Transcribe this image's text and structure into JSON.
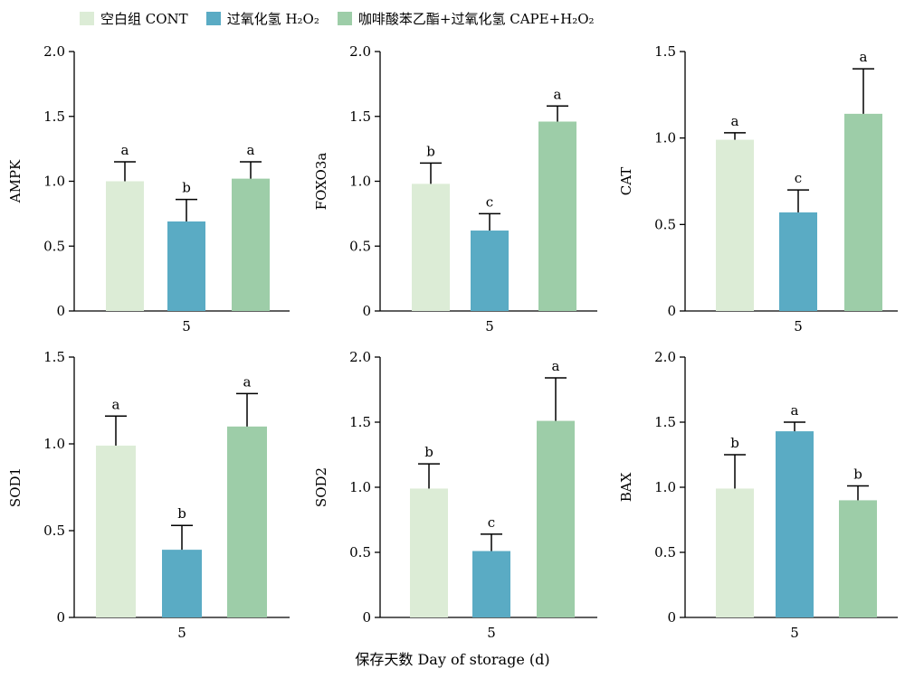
{
  "legend": [
    {
      "label": "空白组 CONT",
      "color": "#dcecd6"
    },
    {
      "label": "过氧化氢 H₂O₂",
      "color": "#5aabc4"
    },
    {
      "label": "咖啡酸苯乙酯+过氧化氢 CAPE+H₂O₂",
      "color": "#9dcda8"
    }
  ],
  "x_title": "保存天数 Day of storage (d)",
  "chart_data": [
    {
      "type": "bar",
      "ylabel": "AMPK",
      "categories": [
        "5"
      ],
      "ylim": [
        0,
        2.0
      ],
      "yticks": [
        "0",
        "0.5",
        "1.0",
        "1.5",
        "2.0"
      ],
      "series": [
        {
          "name": "空白组 CONT",
          "values": [
            1.0
          ],
          "error": [
            0.15
          ],
          "letter": "a"
        },
        {
          "name": "过氧化氢 H₂O₂",
          "values": [
            0.69
          ],
          "error": [
            0.17
          ],
          "letter": "b"
        },
        {
          "name": "咖啡酸苯乙酯+过氧化氢 CAPE+H₂O₂",
          "values": [
            1.02
          ],
          "error": [
            0.13
          ],
          "letter": "a"
        }
      ]
    },
    {
      "type": "bar",
      "ylabel": "FOXO3a",
      "categories": [
        "5"
      ],
      "ylim": [
        0,
        2.0
      ],
      "yticks": [
        "0",
        "0.5",
        "1.0",
        "1.5",
        "2.0"
      ],
      "series": [
        {
          "name": "空白组 CONT",
          "values": [
            0.98
          ],
          "error": [
            0.16
          ],
          "letter": "b"
        },
        {
          "name": "过氧化氢 H₂O₂",
          "values": [
            0.62
          ],
          "error": [
            0.13
          ],
          "letter": "c"
        },
        {
          "name": "咖啡酸苯乙酯+过氧化氢 CAPE+H₂O₂",
          "values": [
            1.46
          ],
          "error": [
            0.12
          ],
          "letter": "a"
        }
      ]
    },
    {
      "type": "bar",
      "ylabel": "CAT",
      "categories": [
        "5"
      ],
      "ylim": [
        0,
        1.5
      ],
      "yticks": [
        "0",
        "0.5",
        "1.0",
        "1.5"
      ],
      "series": [
        {
          "name": "空白组 CONT",
          "values": [
            0.99
          ],
          "error": [
            0.04
          ],
          "letter": "a"
        },
        {
          "name": "过氧化氢 H₂O₂",
          "values": [
            0.57
          ],
          "error": [
            0.13
          ],
          "letter": "c"
        },
        {
          "name": "咖啡酸苯乙酯+过氧化氢 CAPE+H₂O₂",
          "values": [
            1.14
          ],
          "error": [
            0.26
          ],
          "letter": "a"
        }
      ]
    },
    {
      "type": "bar",
      "ylabel": "SOD1",
      "categories": [
        "5"
      ],
      "ylim": [
        0,
        1.5
      ],
      "yticks": [
        "0",
        "0.5",
        "1.0",
        "1.5"
      ],
      "series": [
        {
          "name": "空白组 CONT",
          "values": [
            0.99
          ],
          "error": [
            0.17
          ],
          "letter": "a"
        },
        {
          "name": "过氧化氢 H₂O₂",
          "values": [
            0.39
          ],
          "error": [
            0.14
          ],
          "letter": "b"
        },
        {
          "name": "咖啡酸苯乙酯+过氧化氢 CAPE+H₂O₂",
          "values": [
            1.1
          ],
          "error": [
            0.19
          ],
          "letter": "a"
        }
      ]
    },
    {
      "type": "bar",
      "ylabel": "SOD2",
      "categories": [
        "5"
      ],
      "ylim": [
        0,
        2.0
      ],
      "yticks": [
        "0",
        "0.5",
        "1.0",
        "1.5",
        "2.0"
      ],
      "series": [
        {
          "name": "空白组 CONT",
          "values": [
            0.99
          ],
          "error": [
            0.19
          ],
          "letter": "b"
        },
        {
          "name": "过氧化氢 H₂O₂",
          "values": [
            0.51
          ],
          "error": [
            0.13
          ],
          "letter": "c"
        },
        {
          "name": "咖啡酸苯乙酯+过氧化氢 CAPE+H₂O₂",
          "values": [
            1.51
          ],
          "error": [
            0.33
          ],
          "letter": "a"
        }
      ]
    },
    {
      "type": "bar",
      "ylabel": "BAX",
      "categories": [
        "5"
      ],
      "ylim": [
        0,
        2.0
      ],
      "yticks": [
        "0",
        "0.5",
        "1.0",
        "1.5",
        "2.0"
      ],
      "series": [
        {
          "name": "空白组 CONT",
          "values": [
            0.99
          ],
          "error": [
            0.26
          ],
          "letter": "b"
        },
        {
          "name": "过氧化氢 H₂O₂",
          "values": [
            1.43
          ],
          "error": [
            0.07
          ],
          "letter": "a"
        },
        {
          "name": "咖啡酸苯乙酯+过氧化氢 CAPE+H₂O₂",
          "values": [
            0.9
          ],
          "error": [
            0.11
          ],
          "letter": "b"
        }
      ]
    }
  ]
}
